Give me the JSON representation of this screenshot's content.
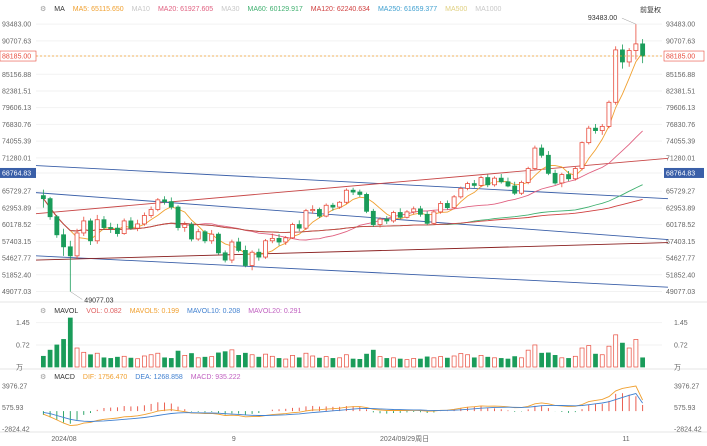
{
  "header": {
    "main_label": "MA",
    "adjust_label": "前复权",
    "ma_items": [
      {
        "text": "MA5: 65115.650",
        "color": "#f0a030"
      },
      {
        "text": "MA10",
        "color": "#c8c8c8"
      },
      {
        "text": "MA20: 61927.605",
        "color": "#e06080"
      },
      {
        "text": "MA30",
        "color": "#c8c8c8"
      },
      {
        "text": "MA60: 60129.917",
        "color": "#40b070"
      },
      {
        "text": "MA120: 62240.634",
        "color": "#d04040"
      },
      {
        "text": "MA250: 61659.377",
        "color": "#40a0d0"
      },
      {
        "text": "MA500",
        "color": "#e0d080"
      },
      {
        "text": "MA1000",
        "color": "#c8c8c8"
      }
    ]
  },
  "volume_panel": {
    "label": "MAVOL",
    "items": [
      {
        "text": "VOL: 0.082",
        "color": "#e06060"
      },
      {
        "text": "MAVOL5: 0.199",
        "color": "#f0a030"
      },
      {
        "text": "MAVOL10: 0.208",
        "color": "#4080d0"
      },
      {
        "text": "MAVOL20: 0.291",
        "color": "#c060c0"
      }
    ]
  },
  "macd_panel": {
    "label": "MACD",
    "items": [
      {
        "text": "DIF: 1756.470",
        "color": "#f0a030"
      },
      {
        "text": "DEA: 1268.858",
        "color": "#4080d0"
      },
      {
        "text": "MACD: 935.222",
        "color": "#c060c0"
      }
    ]
  },
  "x_labels": [
    "2024/08",
    "9",
    "2024/09/29周日",
    "11"
  ],
  "annotations": {
    "high_label": "93483.00",
    "low_label": "49077.03",
    "current_price": "88185.00",
    "crosshair_price": "68764.83"
  },
  "chart_data": {
    "type": "candlestick",
    "y_axis_ticks": [
      "93483.00",
      "90707.63",
      "88185.00",
      "85156.88",
      "82381.51",
      "79606.13",
      "76830.76",
      "74055.39",
      "71280.01",
      "68764.83",
      "65729.27",
      "62953.89",
      "60178.52",
      "57403.15",
      "54627.77",
      "51852.40",
      "49077.03"
    ],
    "volume_ticks": [
      "1.45",
      "0.72",
      "万"
    ],
    "macd_ticks": [
      "3976.27",
      "575.93",
      "-2824.42"
    ],
    "ylim": [
      48000,
      94500
    ],
    "candles": [
      [
        65000,
        66000,
        63000,
        64500
      ],
      [
        64500,
        64800,
        61000,
        61500
      ],
      [
        61500,
        61800,
        58000,
        58500
      ],
      [
        58500,
        59500,
        55000,
        56500
      ],
      [
        56500,
        57500,
        49077,
        55000
      ],
      [
        55000,
        59500,
        54500,
        58800
      ],
      [
        58800,
        61500,
        58300,
        60800
      ],
      [
        60800,
        61200,
        56800,
        57500
      ],
      [
        57500,
        61800,
        57000,
        61000
      ],
      [
        61000,
        61600,
        59300,
        59700
      ],
      [
        59700,
        60500,
        58800,
        59600
      ],
      [
        59600,
        60300,
        58200,
        58700
      ],
      [
        58700,
        61200,
        58500,
        60800
      ],
      [
        60800,
        61400,
        59300,
        59600
      ],
      [
        59600,
        61000,
        59100,
        60300
      ],
      [
        60300,
        62200,
        60000,
        61700
      ],
      [
        61700,
        63200,
        61300,
        62700
      ],
      [
        62700,
        64600,
        62400,
        64300
      ],
      [
        64300,
        64900,
        63500,
        64000
      ],
      [
        64000,
        64700,
        62700,
        63100
      ],
      [
        63100,
        63400,
        59200,
        59700
      ],
      [
        59700,
        60700,
        59000,
        60200
      ],
      [
        60200,
        60600,
        57400,
        57800
      ],
      [
        57800,
        59500,
        57500,
        59000
      ],
      [
        59000,
        59300,
        57100,
        57500
      ],
      [
        57500,
        59300,
        57000,
        58600
      ],
      [
        58600,
        58900,
        55200,
        55500
      ],
      [
        55500,
        55900,
        53900,
        54300
      ],
      [
        54300,
        57700,
        53800,
        57300
      ],
      [
        57300,
        58000,
        55600,
        55900
      ],
      [
        55900,
        56700,
        53100,
        53400
      ],
      [
        53400,
        55900,
        52600,
        55600
      ],
      [
        55600,
        56200,
        54200,
        54800
      ],
      [
        54800,
        57800,
        54500,
        57500
      ],
      [
        57500,
        58700,
        57100,
        57900
      ],
      [
        57900,
        58600,
        56700,
        57300
      ],
      [
        57300,
        58300,
        56800,
        58000
      ],
      [
        58000,
        60500,
        57800,
        60200
      ],
      [
        60200,
        60900,
        59100,
        59600
      ],
      [
        59600,
        62800,
        59300,
        62500
      ],
      [
        62500,
        63400,
        62000,
        62700
      ],
      [
        62700,
        63000,
        61300,
        61600
      ],
      [
        61600,
        63700,
        61400,
        63400
      ],
      [
        63400,
        63800,
        62500,
        63100
      ],
      [
        63100,
        64100,
        62800,
        63900
      ],
      [
        63900,
        66200,
        63600,
        65900
      ],
      [
        65900,
        66300,
        65100,
        65600
      ],
      [
        65600,
        66000,
        64800,
        65200
      ],
      [
        65200,
        65500,
        62100,
        62400
      ],
      [
        62400,
        62800,
        59800,
        60200
      ],
      [
        60200,
        61400,
        59700,
        61100
      ],
      [
        61100,
        61600,
        60300,
        60800
      ],
      [
        60800,
        62500,
        60500,
        62200
      ],
      [
        62200,
        62900,
        61100,
        61400
      ],
      [
        61400,
        62600,
        61200,
        62300
      ],
      [
        62300,
        63200,
        61900,
        62800
      ],
      [
        62800,
        63300,
        61500,
        61900
      ],
      [
        61900,
        62400,
        60100,
        60400
      ],
      [
        60400,
        62600,
        60200,
        62300
      ],
      [
        62300,
        64100,
        62000,
        63700
      ],
      [
        63700,
        64200,
        62700,
        63000
      ],
      [
        63000,
        65100,
        62800,
        64800
      ],
      [
        64800,
        66500,
        64500,
        66200
      ],
      [
        66200,
        67300,
        65900,
        67000
      ],
      [
        67000,
        67600,
        66300,
        66700
      ],
      [
        66700,
        68300,
        66400,
        68000
      ],
      [
        68000,
        68500,
        66400,
        66800
      ],
      [
        66800,
        68200,
        66500,
        67900
      ],
      [
        67900,
        68600,
        67000,
        67300
      ],
      [
        67300,
        68000,
        66400,
        66600
      ],
      [
        66600,
        67300,
        65100,
        65400
      ],
      [
        65400,
        67500,
        65100,
        67200
      ],
      [
        67200,
        69800,
        66900,
        69500
      ],
      [
        69500,
        73300,
        69200,
        72900
      ],
      [
        72900,
        73500,
        71300,
        71700
      ],
      [
        71700,
        72400,
        68400,
        68700
      ],
      [
        68700,
        69300,
        66800,
        67100
      ],
      [
        67100,
        68800,
        66400,
        68500
      ],
      [
        68500,
        69100,
        67400,
        67800
      ],
      [
        67800,
        69800,
        67500,
        69500
      ],
      [
        69500,
        74000,
        69200,
        73800
      ],
      [
        73800,
        76600,
        73500,
        76200
      ],
      [
        76200,
        76900,
        75300,
        75800
      ],
      [
        75800,
        76900,
        75100,
        76500
      ],
      [
        76500,
        80800,
        76200,
        80500
      ],
      [
        80500,
        89800,
        80100,
        89200
      ],
      [
        89200,
        90100,
        86100,
        87200
      ],
      [
        87200,
        89500,
        86400,
        89100
      ],
      [
        89100,
        93483,
        87600,
        90200
      ],
      [
        90200,
        91000,
        87000,
        88185
      ]
    ],
    "volume": [
      0.35,
      0.55,
      0.72,
      0.9,
      1.6,
      0.62,
      0.48,
      0.4,
      0.45,
      0.3,
      0.28,
      0.32,
      0.35,
      0.29,
      0.27,
      0.36,
      0.4,
      0.45,
      0.3,
      0.28,
      0.52,
      0.38,
      0.44,
      0.3,
      0.32,
      0.34,
      0.46,
      0.5,
      0.56,
      0.38,
      0.45,
      0.4,
      0.32,
      0.42,
      0.35,
      0.28,
      0.26,
      0.38,
      0.3,
      0.45,
      0.36,
      0.29,
      0.34,
      0.28,
      0.3,
      0.4,
      0.26,
      0.25,
      0.42,
      0.55,
      0.34,
      0.28,
      0.3,
      0.26,
      0.24,
      0.28,
      0.26,
      0.33,
      0.3,
      0.34,
      0.29,
      0.36,
      0.44,
      0.4,
      0.3,
      0.38,
      0.32,
      0.3,
      0.28,
      0.26,
      0.34,
      0.3,
      0.55,
      0.72,
      0.45,
      0.46,
      0.38,
      0.3,
      0.28,
      0.35,
      0.62,
      0.7,
      0.42,
      0.4,
      0.68,
      1.05,
      0.78,
      0.62,
      0.9,
      0.3
    ],
    "macd_dif": [
      -500,
      -900,
      -1400,
      -1900,
      -2300,
      -2200,
      -1900,
      -1800,
      -1500,
      -1300,
      -1200,
      -1100,
      -900,
      -850,
      -750,
      -550,
      -300,
      0,
      150,
      220,
      60,
      -100,
      -300,
      -330,
      -380,
      -360,
      -500,
      -700,
      -650,
      -720,
      -900,
      -880,
      -850,
      -700,
      -560,
      -480,
      -400,
      -250,
      -170,
      30,
      170,
      210,
      320,
      380,
      460,
      620,
      700,
      720,
      560,
      290,
      180,
      100,
      110,
      90,
      100,
      120,
      80,
      -20,
      0,
      120,
      150,
      280,
      460,
      620,
      700,
      820,
      780,
      800,
      760,
      680,
      540,
      560,
      760,
      1150,
      1300,
      1150,
      900,
      820,
      720,
      760,
      1050,
      1500,
      1700,
      1850,
      2300,
      3200,
      3600,
      3800,
      3976,
      1756
    ],
    "macd_dea": [
      -200,
      -400,
      -700,
      -1000,
      -1300,
      -1500,
      -1600,
      -1650,
      -1600,
      -1550,
      -1480,
      -1400,
      -1300,
      -1220,
      -1130,
      -1010,
      -870,
      -700,
      -530,
      -380,
      -290,
      -250,
      -260,
      -270,
      -290,
      -300,
      -340,
      -420,
      -470,
      -520,
      -600,
      -660,
      -700,
      -700,
      -670,
      -630,
      -580,
      -510,
      -440,
      -340,
      -240,
      -150,
      -50,
      40,
      120,
      220,
      310,
      390,
      420,
      390,
      350,
      300,
      260,
      230,
      200,
      190,
      170,
      130,
      110,
      110,
      120,
      150,
      210,
      290,
      370,
      460,
      520,
      580,
      610,
      620,
      600,
      590,
      620,
      730,
      850,
      910,
      910,
      890,
      860,
      840,
      890,
      1010,
      1150,
      1290,
      1490,
      1830,
      2180,
      2500,
      2800,
      1268
    ]
  }
}
